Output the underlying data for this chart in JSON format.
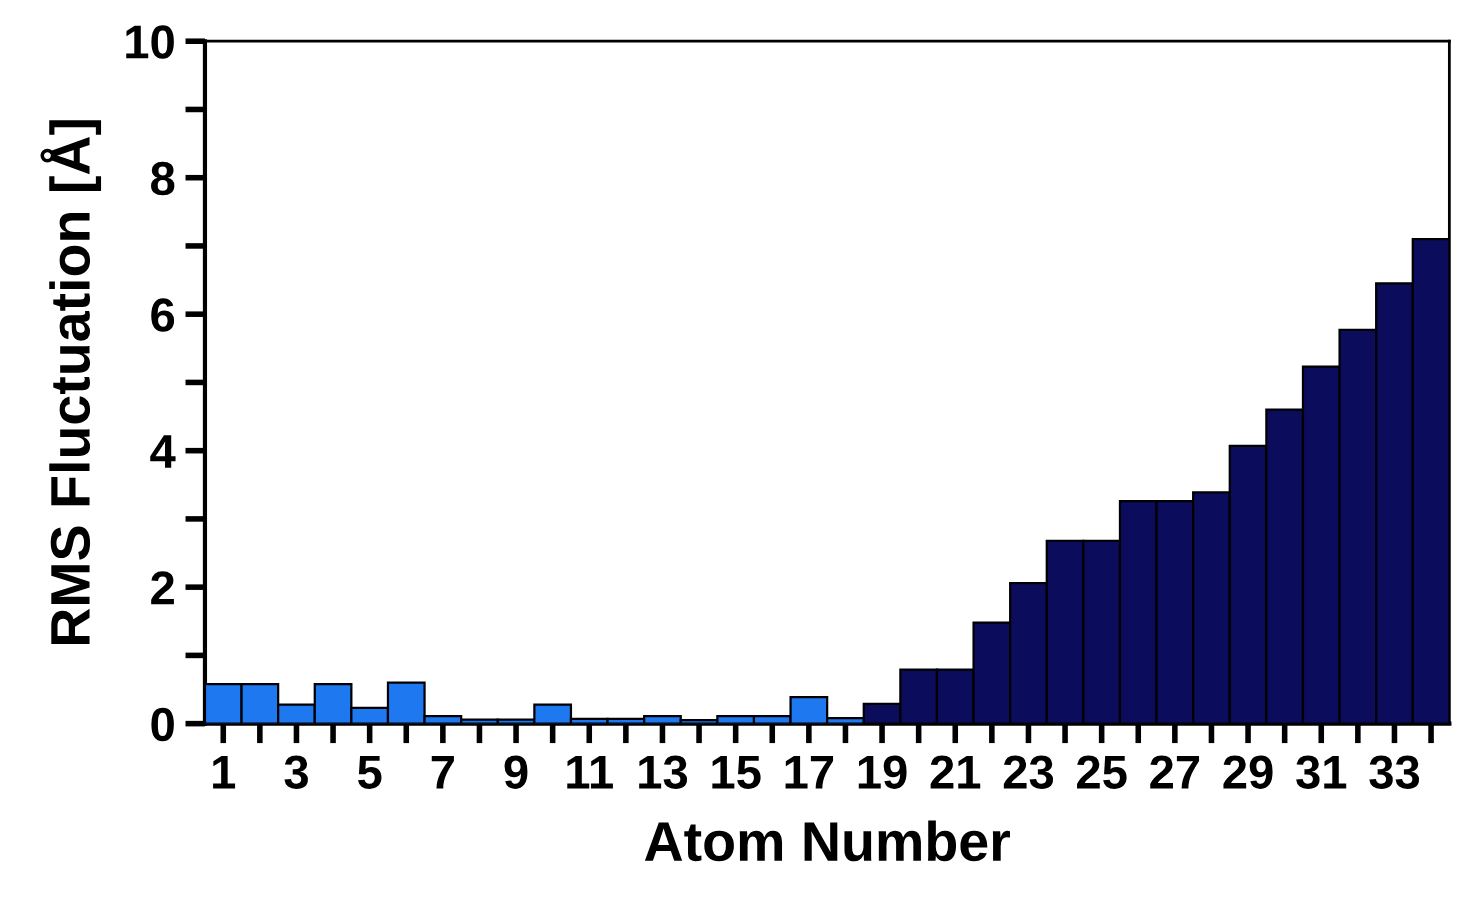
{
  "chart_data": {
    "type": "bar",
    "xlabel": "Atom Number",
    "ylabel": "RMS Fluctuation [Å]",
    "categories": [
      "1",
      null,
      "3",
      null,
      "5",
      null,
      "7",
      null,
      "9",
      null,
      "11",
      null,
      "13",
      null,
      "15",
      null,
      "17",
      null,
      "19",
      null,
      "21",
      null,
      "23",
      null,
      "25",
      null,
      "27",
      null,
      "29",
      null,
      "31",
      null,
      "33",
      null
    ],
    "values": [
      0.58,
      0.58,
      0.28,
      0.58,
      0.23,
      0.6,
      0.11,
      0.06,
      0.06,
      0.28,
      0.07,
      0.07,
      0.11,
      0.05,
      0.11,
      0.11,
      0.39,
      0.08,
      0.29,
      0.79,
      0.79,
      1.48,
      2.06,
      2.68,
      2.68,
      3.26,
      3.26,
      3.39,
      4.07,
      4.6,
      5.23,
      5.77,
      6.45,
      7.1
    ],
    "colors": [
      "#1e78f0",
      "#1e78f0",
      "#1e78f0",
      "#1e78f0",
      "#1e78f0",
      "#1e78f0",
      "#1e78f0",
      "#1e78f0",
      "#1e78f0",
      "#1e78f0",
      "#1e78f0",
      "#1e78f0",
      "#1e78f0",
      "#1e78f0",
      "#1e78f0",
      "#1e78f0",
      "#1e78f0",
      "#1e78f0",
      "#0c0c5c",
      "#0c0c5c",
      "#0c0c5c",
      "#0c0c5c",
      "#0c0c5c",
      "#0c0c5c",
      "#0c0c5c",
      "#0c0c5c",
      "#0c0c5c",
      "#0c0c5c",
      "#0c0c5c",
      "#0c0c5c",
      "#0c0c5c",
      "#0c0c5c",
      "#0c0c5c",
      "#0c0c5c"
    ],
    "ylim": [
      0,
      10
    ],
    "yticks": [
      0,
      {
        "value": 1,
        "label": null
      },
      2,
      {
        "value": 3,
        "label": null
      },
      4,
      {
        "value": 5,
        "label": null
      },
      6,
      {
        "value": 7,
        "label": null
      },
      8,
      {
        "value": 9,
        "label": null
      },
      10
    ],
    "grid": false,
    "legend": false
  }
}
